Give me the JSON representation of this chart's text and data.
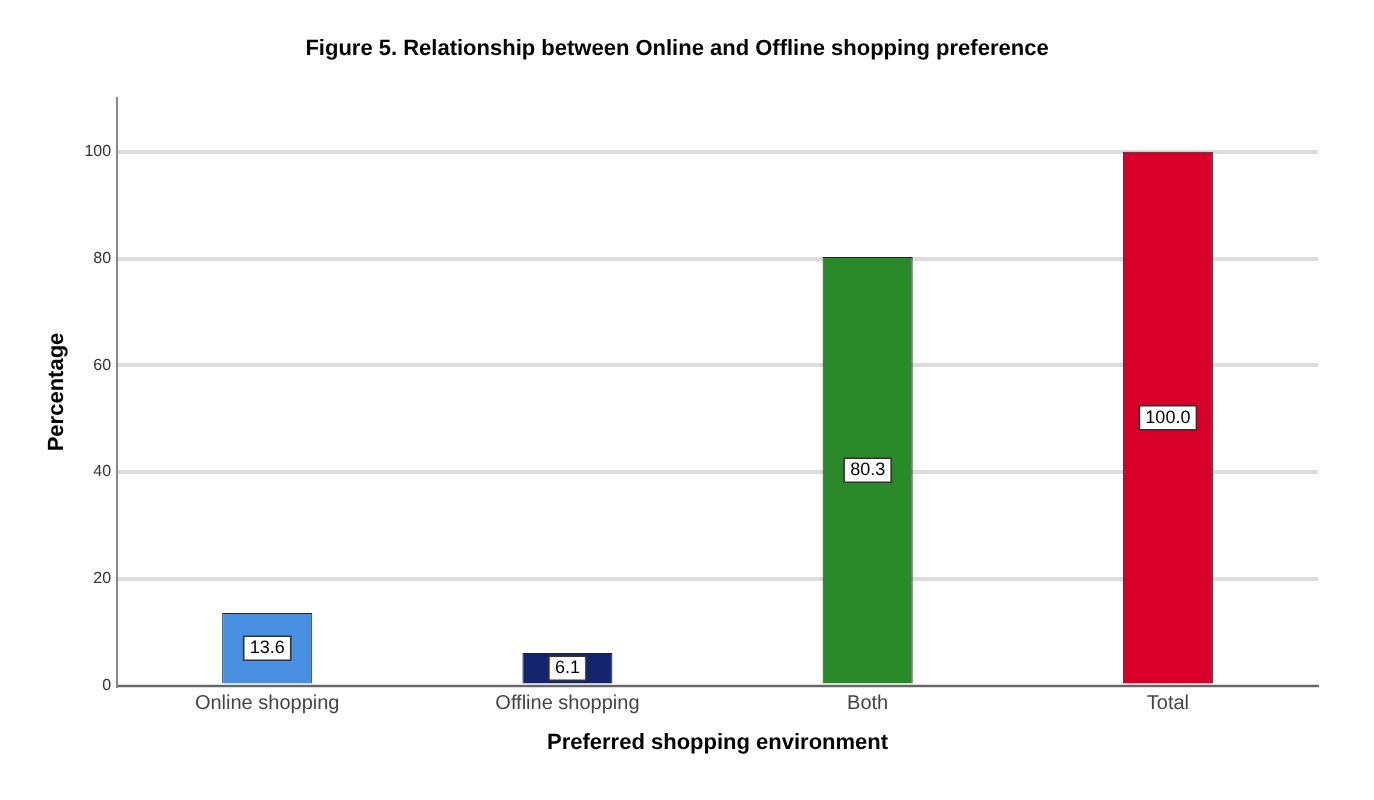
{
  "chart_data": {
    "type": "bar",
    "title": "Figure 5. Relationship between Online and Offline shopping preference",
    "xlabel": "Preferred shopping environment",
    "ylabel": "Percentage",
    "categories": [
      "Online shopping",
      "Offline shopping",
      "Both",
      "Total"
    ],
    "values": [
      13.6,
      6.1,
      80.3,
      100.0
    ],
    "value_labels": [
      "13.6",
      "6.1",
      "80.3",
      "100.0"
    ],
    "colors": [
      "#4a90e2",
      "#14246e",
      "#2a8a2a",
      "#d8002a"
    ],
    "ylim": [
      0,
      110
    ],
    "yticks": [
      0,
      20,
      40,
      60,
      80,
      100
    ],
    "grid": "y",
    "legend": false
  }
}
